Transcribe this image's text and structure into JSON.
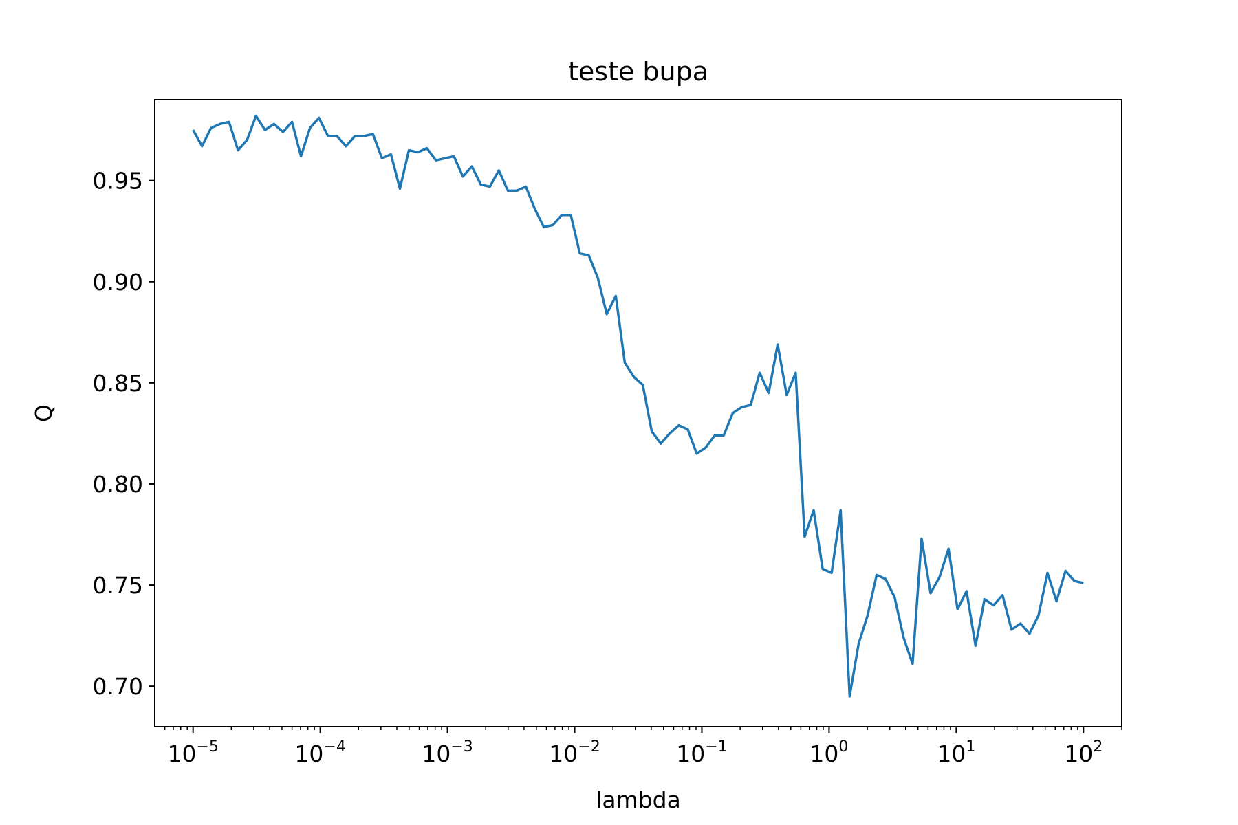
{
  "chart_data": {
    "type": "line",
    "title": "teste bupa",
    "xlabel": "lambda",
    "ylabel": "Q",
    "xscale": "log",
    "xlim": [
      5e-06,
      200
    ],
    "ylim": [
      0.68,
      0.99
    ],
    "grid": false,
    "line_color": "#1f77b4",
    "x_ticks": [
      {
        "base": "10",
        "exp": "−5",
        "value": 1e-05
      },
      {
        "base": "10",
        "exp": "−4",
        "value": 0.0001
      },
      {
        "base": "10",
        "exp": "−3",
        "value": 0.001
      },
      {
        "base": "10",
        "exp": "−2",
        "value": 0.01
      },
      {
        "base": "10",
        "exp": "−1",
        "value": 0.1
      },
      {
        "base": "10",
        "exp": "0",
        "value": 1
      },
      {
        "base": "10",
        "exp": "1",
        "value": 10
      },
      {
        "base": "10",
        "exp": "2",
        "value": 100
      }
    ],
    "y_ticks": [
      {
        "label": "0.70",
        "value": 0.7
      },
      {
        "label": "0.75",
        "value": 0.75
      },
      {
        "label": "0.80",
        "value": 0.8
      },
      {
        "label": "0.85",
        "value": 0.85
      },
      {
        "label": "0.90",
        "value": 0.9
      },
      {
        "label": "0.95",
        "value": 0.95
      }
    ],
    "x_log_start": -5,
    "x_log_end": 2,
    "series": [
      {
        "values": [
          0.975,
          0.967,
          0.976,
          0.978,
          0.979,
          0.965,
          0.97,
          0.982,
          0.975,
          0.978,
          0.974,
          0.979,
          0.962,
          0.976,
          0.981,
          0.972,
          0.972,
          0.967,
          0.972,
          0.972,
          0.973,
          0.961,
          0.963,
          0.946,
          0.965,
          0.964,
          0.966,
          0.96,
          0.961,
          0.962,
          0.952,
          0.957,
          0.948,
          0.947,
          0.955,
          0.945,
          0.945,
          0.947,
          0.936,
          0.927,
          0.928,
          0.933,
          0.933,
          0.914,
          0.913,
          0.902,
          0.884,
          0.893,
          0.86,
          0.853,
          0.849,
          0.826,
          0.82,
          0.825,
          0.829,
          0.827,
          0.815,
          0.818,
          0.824,
          0.824,
          0.835,
          0.838,
          0.839,
          0.855,
          0.845,
          0.869,
          0.844,
          0.855,
          0.774,
          0.787,
          0.758,
          0.756,
          0.787,
          0.695,
          0.721,
          0.735,
          0.755,
          0.753,
          0.744,
          0.724,
          0.711,
          0.773,
          0.746,
          0.754,
          0.768,
          0.738,
          0.747,
          0.72,
          0.743,
          0.74,
          0.745,
          0.728,
          0.731,
          0.726,
          0.735,
          0.756,
          0.742,
          0.757,
          0.752,
          0.751
        ]
      }
    ]
  }
}
